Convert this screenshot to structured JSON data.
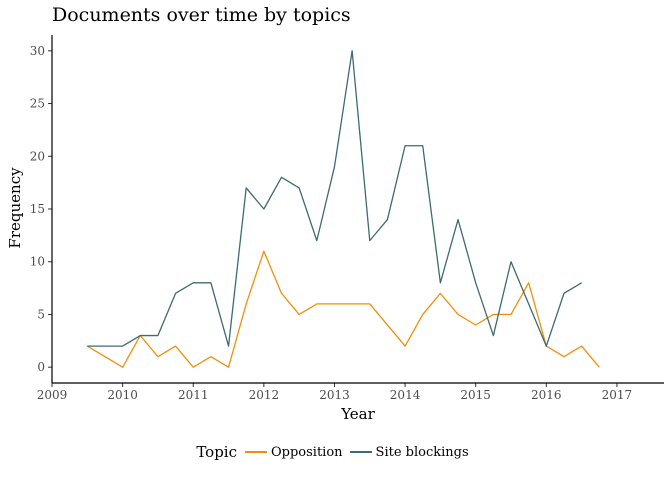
{
  "chart_data": {
    "type": "line",
    "title": "Documents over time by topics",
    "xlabel": "Year",
    "ylabel": "Frequency",
    "x_ticks": [
      "2009",
      "2010",
      "2011",
      "2012",
      "2013",
      "2014",
      "2015",
      "2016",
      "2017"
    ],
    "y_ticks": [
      "0",
      "5",
      "10",
      "15",
      "20",
      "25",
      "30"
    ],
    "xlim": [
      "2009-01-01",
      "2017-09-01"
    ],
    "ylim": [
      -1.5,
      31.5
    ],
    "grid": false,
    "legend_title": "Topic",
    "legend_position": "bottom",
    "series": [
      {
        "name": "Opposition",
        "color": "#f0900a",
        "points": [
          [
            "2009-07",
            2
          ],
          [
            "2010-01",
            0
          ],
          [
            "2010-04",
            3
          ],
          [
            "2010-07",
            1
          ],
          [
            "2010-10",
            2
          ],
          [
            "2011-01",
            0
          ],
          [
            "2011-04",
            1
          ],
          [
            "2011-07",
            0
          ],
          [
            "2011-10",
            6
          ],
          [
            "2012-01",
            11
          ],
          [
            "2012-04",
            7
          ],
          [
            "2012-07",
            5
          ],
          [
            "2012-10",
            6
          ],
          [
            "2013-01",
            6
          ],
          [
            "2013-04",
            6
          ],
          [
            "2013-07",
            6
          ],
          [
            "2014-01",
            2
          ],
          [
            "2014-04",
            5
          ],
          [
            "2014-07",
            7
          ],
          [
            "2014-10",
            5
          ],
          [
            "2015-01",
            4
          ],
          [
            "2015-04",
            5
          ],
          [
            "2015-07",
            5
          ],
          [
            "2015-10",
            8
          ],
          [
            "2016-01",
            2
          ],
          [
            "2016-04",
            1
          ],
          [
            "2016-07",
            2
          ],
          [
            "2016-10",
            0
          ]
        ]
      },
      {
        "name": "Site blockings",
        "color": "#3d6b72",
        "points": [
          [
            "2009-07",
            2
          ],
          [
            "2010-01",
            2
          ],
          [
            "2010-04",
            3
          ],
          [
            "2010-07",
            3
          ],
          [
            "2010-10",
            7
          ],
          [
            "2011-01",
            8
          ],
          [
            "2011-04",
            8
          ],
          [
            "2011-07",
            2
          ],
          [
            "2011-10",
            17
          ],
          [
            "2012-01",
            15
          ],
          [
            "2012-04",
            18
          ],
          [
            "2012-07",
            17
          ],
          [
            "2012-10",
            12
          ],
          [
            "2013-01",
            19
          ],
          [
            "2013-04",
            30
          ],
          [
            "2013-07",
            12
          ],
          [
            "2013-10",
            14
          ],
          [
            "2014-01",
            21
          ],
          [
            "2014-04",
            21
          ],
          [
            "2014-07",
            8
          ],
          [
            "2014-10",
            14
          ],
          [
            "2015-01",
            8
          ],
          [
            "2015-04",
            3
          ],
          [
            "2015-07",
            10
          ],
          [
            "2015-10",
            6
          ],
          [
            "2016-01",
            2
          ],
          [
            "2016-04",
            7
          ],
          [
            "2016-07",
            8
          ]
        ]
      }
    ]
  }
}
